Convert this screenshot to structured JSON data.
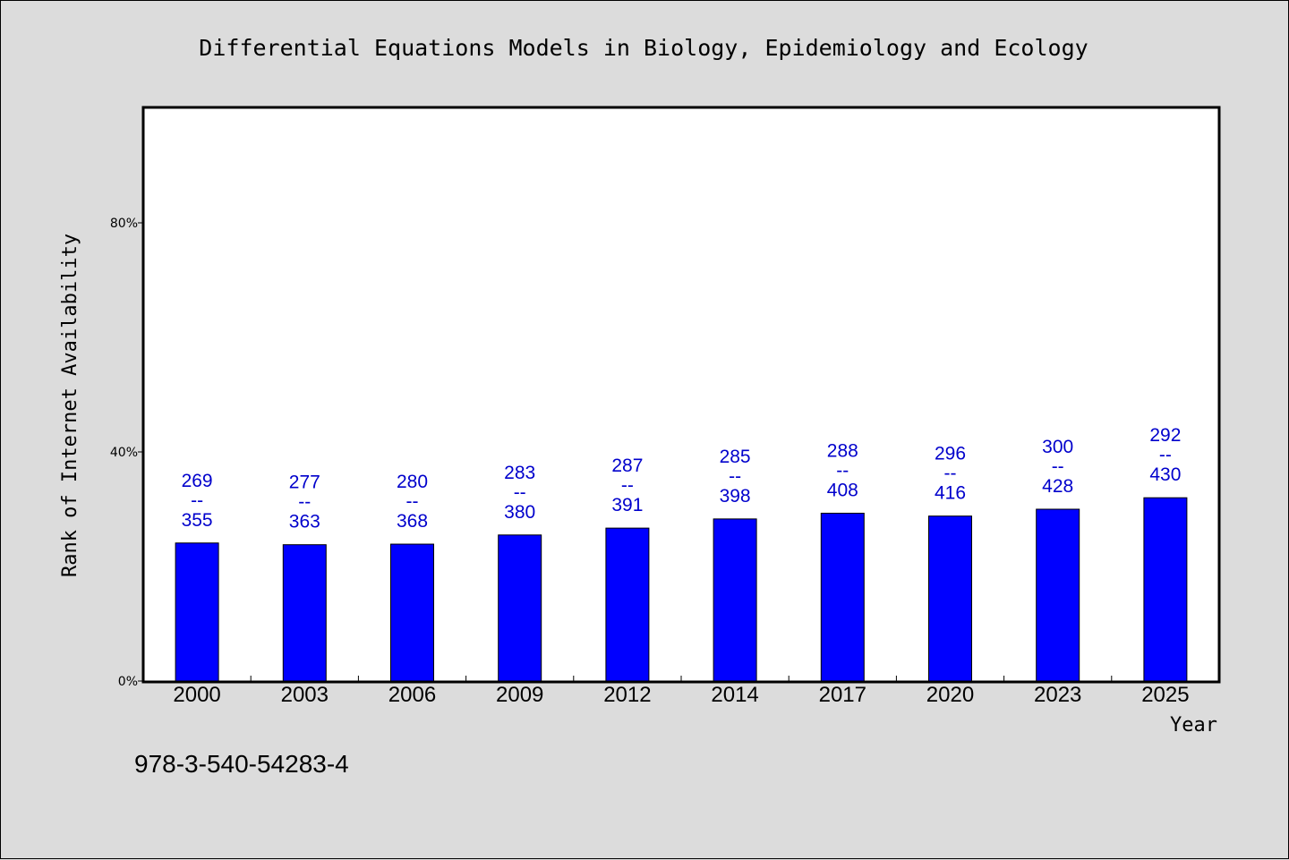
{
  "chart_data": {
    "type": "bar",
    "title": "Differential Equations Models in Biology, Epidemiology and Ecology",
    "xlabel": "Year",
    "ylabel": "Rank of Internet Availability",
    "categories": [
      "2000",
      "2003",
      "2006",
      "2009",
      "2012",
      "2014",
      "2017",
      "2020",
      "2023",
      "2025"
    ],
    "values": [
      24.1,
      23.8,
      23.9,
      25.5,
      26.7,
      28.3,
      29.3,
      28.8,
      30.0,
      32.0
    ],
    "data_labels": [
      {
        "top": "269",
        "sep": "--",
        "bottom": "355"
      },
      {
        "top": "277",
        "sep": "--",
        "bottom": "363"
      },
      {
        "top": "280",
        "sep": "--",
        "bottom": "368"
      },
      {
        "top": "283",
        "sep": "--",
        "bottom": "380"
      },
      {
        "top": "287",
        "sep": "--",
        "bottom": "391"
      },
      {
        "top": "285",
        "sep": "--",
        "bottom": "398"
      },
      {
        "top": "288",
        "sep": "--",
        "bottom": "408"
      },
      {
        "top": "296",
        "sep": "--",
        "bottom": "416"
      },
      {
        "top": "300",
        "sep": "--",
        "bottom": "428"
      },
      {
        "top": "292",
        "sep": "--",
        "bottom": "430"
      }
    ],
    "ylim": [
      0,
      100
    ],
    "yticks": [
      0,
      40,
      80
    ],
    "ytick_labels": [
      "0%",
      "40%",
      "80%"
    ],
    "grid": false,
    "colors": {
      "bar": "#0000ff",
      "label": "#0000cc",
      "background": "#dcdcdc",
      "plot": "#ffffff"
    }
  },
  "footer_code": "978-3-540-54283-4"
}
